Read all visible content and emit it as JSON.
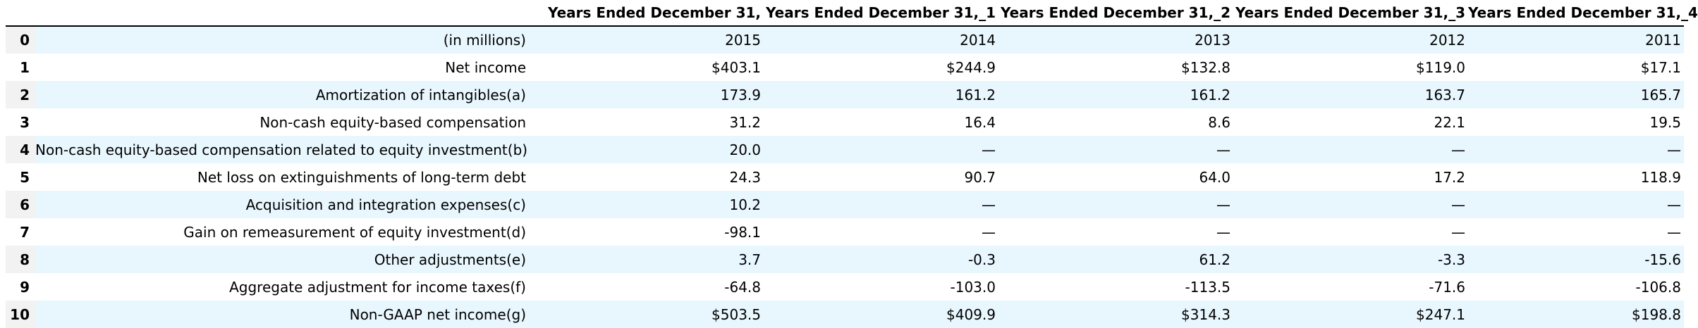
{
  "table": {
    "headers": [
      "",
      "",
      "Years Ended December 31,",
      "Years Ended December 31,_1",
      "Years Ended December 31,_2",
      "Years Ended December 31,_3",
      "Years Ended December 31,_4"
    ],
    "rows": [
      {
        "index": "0",
        "cells": [
          "(in millions)",
          "2015",
          "2014",
          "2013",
          "2012",
          "2011"
        ]
      },
      {
        "index": "1",
        "cells": [
          "Net income",
          "$403.1",
          "$244.9",
          "$132.8",
          "$119.0",
          "$17.1"
        ]
      },
      {
        "index": "2",
        "cells": [
          "Amortization of intangibles(a)",
          "173.9",
          "161.2",
          "161.2",
          "163.7",
          "165.7"
        ]
      },
      {
        "index": "3",
        "cells": [
          "Non-cash equity-based compensation",
          "31.2",
          "16.4",
          "8.6",
          "22.1",
          "19.5"
        ]
      },
      {
        "index": "4",
        "cells": [
          "Non-cash equity-based compensation related to equity investment(b)",
          "20.0",
          "—",
          "—",
          "—",
          "—"
        ]
      },
      {
        "index": "5",
        "cells": [
          "Net loss on extinguishments of long-term debt",
          "24.3",
          "90.7",
          "64.0",
          "17.2",
          "118.9"
        ]
      },
      {
        "index": "6",
        "cells": [
          "Acquisition and integration expenses(c)",
          "10.2",
          "—",
          "—",
          "—",
          "—"
        ]
      },
      {
        "index": "7",
        "cells": [
          "Gain on remeasurement of equity investment(d)",
          "-98.1",
          "—",
          "—",
          "—",
          "—"
        ]
      },
      {
        "index": "8",
        "cells": [
          "Other adjustments(e)",
          "3.7",
          "-0.3",
          "61.2",
          "-3.3",
          "-15.6"
        ]
      },
      {
        "index": "9",
        "cells": [
          "Aggregate adjustment for income taxes(f)",
          "-64.8",
          "-103.0",
          "-113.5",
          "-71.6",
          "-106.8"
        ]
      },
      {
        "index": "10",
        "cells": [
          "Non-GAAP net income(g)",
          "$503.5",
          "$409.9",
          "$314.3",
          "$247.1",
          "$198.8"
        ]
      }
    ]
  },
  "colors": {
    "stripe": "#e8f6fd",
    "index_stripe": "#f2f2f2",
    "rule": "#000000"
  }
}
